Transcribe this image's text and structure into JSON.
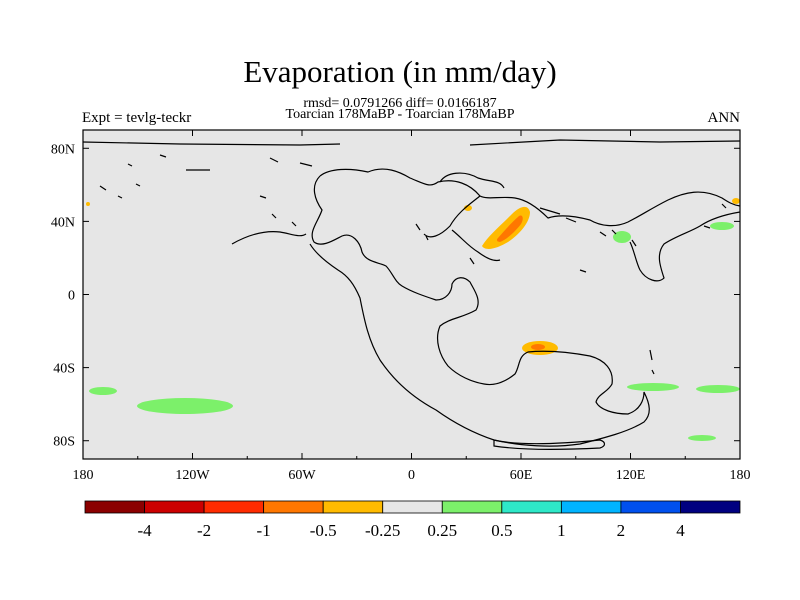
{
  "header": {
    "title": "Evaporation (in mm/day)",
    "stats": "rmsd= 0.0791266 diff= 0.0166187",
    "comparison": "Toarcian 178MaBP - Toarcian 178MaBP",
    "experiment": "Expt = tevlg-teckr",
    "season": "ANN"
  },
  "map": {
    "lon_range": [
      -180,
      180
    ],
    "lat_range": [
      -90,
      90
    ],
    "x_ticks": [
      {
        "lon": -180,
        "label": "180"
      },
      {
        "lon": -120,
        "label": "120W"
      },
      {
        "lon": -60,
        "label": "60W"
      },
      {
        "lon": 0,
        "label": "0"
      },
      {
        "lon": 60,
        "label": "60E"
      },
      {
        "lon": 120,
        "label": "120E"
      },
      {
        "lon": 180,
        "label": "180"
      }
    ],
    "y_ticks": [
      {
        "lat": 80,
        "label": "80N"
      },
      {
        "lat": 40,
        "label": "40N"
      },
      {
        "lat": 0,
        "label": "0"
      },
      {
        "lat": -40,
        "label": "40S"
      },
      {
        "lat": -80,
        "label": "80S"
      }
    ],
    "background_color": "#e6e6e6"
  },
  "colorbar": {
    "colors": [
      "#8b0000",
      "#cc0000",
      "#ff2b00",
      "#ff7700",
      "#ffbb00",
      "#e6e6e6",
      "#7cf06a",
      "#2ee8c8",
      "#00b4ff",
      "#0050ee",
      "#000080"
    ],
    "labels": [
      "-4",
      "-2",
      "-1",
      "-0.5",
      "-0.25",
      "0.25",
      "0.5",
      "1",
      "2",
      "4"
    ]
  }
}
